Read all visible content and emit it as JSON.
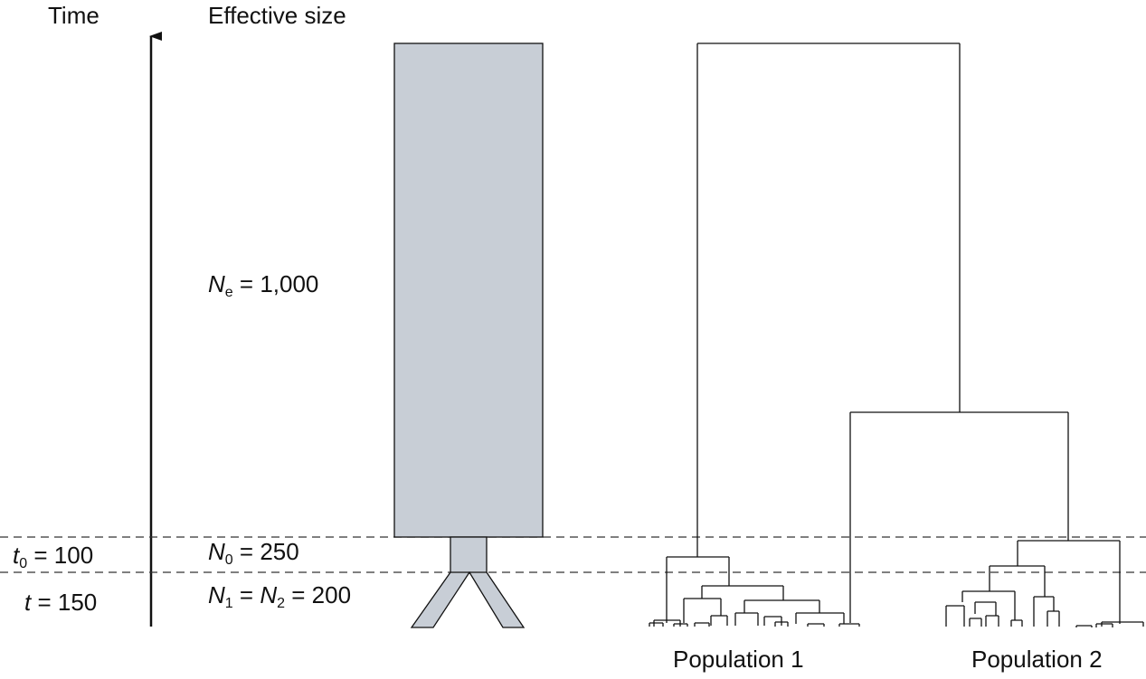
{
  "header": {
    "time_label": "Time",
    "effective_size_label": "Effective size"
  },
  "sizes": {
    "ne_symbol": "N",
    "ne_sub": "e",
    "ne_value": "= 1,000",
    "n0_symbol": "N",
    "n0_sub": "0",
    "n0_value": "= 250",
    "n1_symbol": "N",
    "n1_sub": "1",
    "n1_eq": "=",
    "n2_symbol": "N",
    "n2_sub": "2",
    "n12_value": "= 200"
  },
  "times": {
    "t0_symbol": "t",
    "t0_sub": "0",
    "t0_value": "= 100",
    "t_symbol": "t",
    "t_value": "= 150"
  },
  "populations": {
    "pop1_label": "Population 1",
    "pop2_label": "Population 2"
  },
  "colors": {
    "population_fill": "#c8ced6",
    "line": "#111111"
  }
}
